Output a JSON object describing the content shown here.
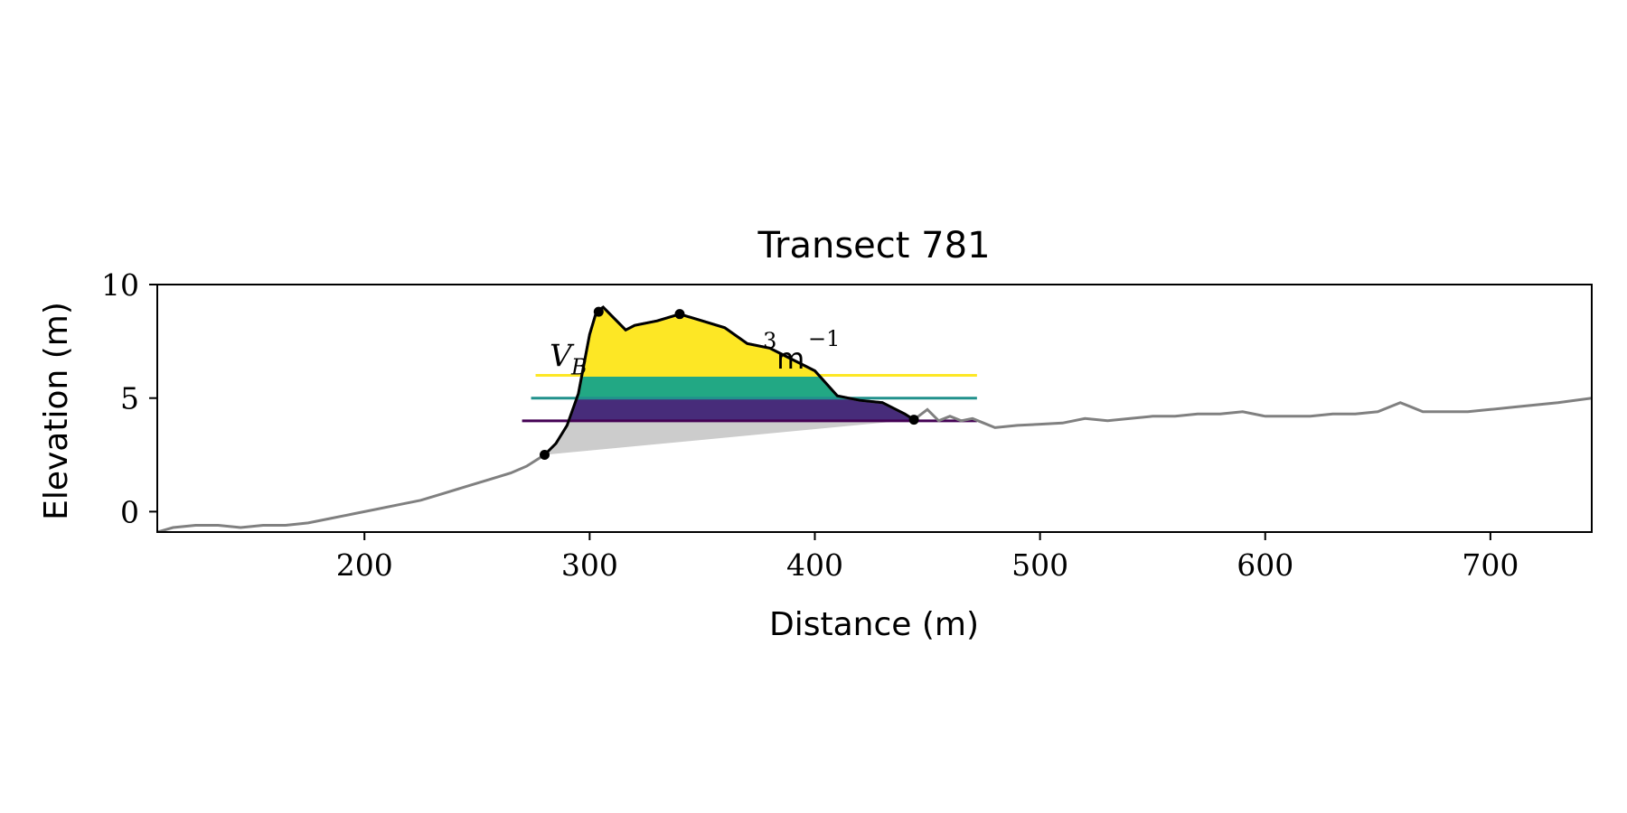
{
  "chart_data": {
    "type": "line",
    "title": "Transect 781",
    "xlabel": "Distance (m)",
    "ylabel": "Elevation (m)",
    "xlim": [
      108,
      745
    ],
    "ylim": [
      -0.9,
      10.0
    ],
    "xticks": [
      200,
      300,
      400,
      500,
      600,
      700
    ],
    "yticks": [
      0,
      5,
      10
    ],
    "xtick_labels": [
      "200",
      "300",
      "400",
      "500",
      "600",
      "700"
    ],
    "ytick_labels": [
      "0",
      "5",
      "10"
    ],
    "grid": false,
    "annotation": {
      "text_main": "V",
      "text_sub": "B",
      "text_fragment": "3",
      "text_unit": "m",
      "text_exp": "−1",
      "x": 275,
      "y": 6.4
    },
    "profile": {
      "x": [
        108,
        115,
        125,
        135,
        145,
        155,
        165,
        175,
        185,
        195,
        205,
        215,
        225,
        235,
        245,
        255,
        265,
        272,
        280,
        285,
        290,
        295,
        300,
        303,
        306,
        310,
        316,
        320,
        330,
        340,
        350,
        360,
        370,
        380,
        390,
        400,
        410,
        420,
        430,
        440,
        444,
        450,
        455,
        460,
        465,
        470,
        475,
        480,
        490,
        500,
        510,
        520,
        530,
        540,
        550,
        560,
        570,
        580,
        590,
        600,
        610,
        620,
        630,
        640,
        650,
        660,
        665,
        670,
        680,
        690,
        700,
        710,
        720,
        730,
        745
      ],
      "y": [
        -0.9,
        -0.7,
        -0.6,
        -0.6,
        -0.7,
        -0.6,
        -0.6,
        -0.5,
        -0.3,
        -0.1,
        0.1,
        0.3,
        0.5,
        0.8,
        1.1,
        1.4,
        1.7,
        2.0,
        2.5,
        3.0,
        3.8,
        5.2,
        7.8,
        8.8,
        9.0,
        8.6,
        8.0,
        8.2,
        8.4,
        8.7,
        8.4,
        8.1,
        7.4,
        7.2,
        6.7,
        6.2,
        5.1,
        4.9,
        4.8,
        4.3,
        4.05,
        4.5,
        4.0,
        4.2,
        4.0,
        4.1,
        3.9,
        3.7,
        3.8,
        3.85,
        3.9,
        4.1,
        4.0,
        4.1,
        4.2,
        4.2,
        4.3,
        4.3,
        4.4,
        4.2,
        4.2,
        4.2,
        4.3,
        4.3,
        4.4,
        4.8,
        4.6,
        4.4,
        4.4,
        4.4,
        4.5,
        4.6,
        4.7,
        4.8,
        5.0
      ]
    },
    "dune_segment": {
      "x_start": 280,
      "x_end": 444
    },
    "base_line": {
      "x": [
        280,
        444
      ],
      "y": [
        2.5,
        4.05
      ]
    },
    "points": [
      {
        "name": "dune-toe",
        "x": 280,
        "y": 2.5
      },
      {
        "name": "dune-crest-a",
        "x": 304,
        "y": 8.8
      },
      {
        "name": "dune-crest-b",
        "x": 340,
        "y": 8.7
      },
      {
        "name": "dune-heel",
        "x": 444,
        "y": 4.05
      }
    ],
    "bands": [
      {
        "x_start": 270,
        "x_end": 472,
        "y_low": 4.0,
        "y_high": 5.0,
        "color": "#472c7a"
      },
      {
        "x_start": 274,
        "x_end": 472,
        "y_low": 5.0,
        "y_high": 6.0,
        "color": "#22a884"
      },
      {
        "x_start": 276,
        "x_end": 472,
        "y_low": 6.0,
        "y_high": 10.0,
        "color": "#fde725"
      }
    ],
    "band_lines": [
      {
        "x_start": 270,
        "x_end": 472,
        "y": 4.0,
        "color": "#440154"
      },
      {
        "x_start": 274,
        "x_end": 472,
        "y": 5.0,
        "color": "#21918c"
      },
      {
        "x_start": 276,
        "x_end": 472,
        "y": 6.0,
        "color": "#fde725"
      }
    ],
    "colors": {
      "profile": "#808080",
      "dune_outline": "#000000",
      "base_fill": "#cccccc",
      "points": "#000000"
    }
  }
}
